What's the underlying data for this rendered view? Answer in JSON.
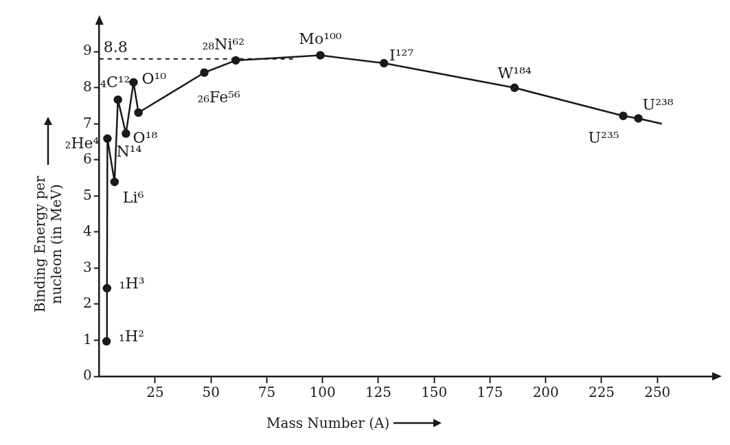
{
  "chart_data": {
    "type": "line",
    "xlabel": "Mass Number (A)",
    "ylabel": "Binding Energy per nucleon (in MeV)",
    "x": [
      3.2,
      3.4,
      3.6,
      6.8,
      8.3,
      11.9,
      15.3,
      17.5,
      47,
      61.1,
      99,
      127.5,
      186,
      234.7,
      241.5,
      252
    ],
    "series": [
      {
        "color": "#1a1a1a",
        "values": [
          0.97,
          2.44,
          6.59,
          5.39,
          7.67,
          6.73,
          8.15,
          7.31,
          8.42,
          8.76,
          8.9,
          8.68,
          8.0,
          7.22,
          7.15,
          7.0
        ]
      }
    ],
    "xlim": [
      0,
      277
    ],
    "xticks": [
      25,
      50,
      75,
      100,
      125,
      150,
      175,
      200,
      225,
      250
    ],
    "ylim": [
      0,
      9.9
    ],
    "yticks": [
      0,
      1,
      2,
      3,
      4,
      5,
      6,
      7,
      8,
      9
    ],
    "ref_lines": [
      {
        "axis": "y",
        "value": 8.8,
        "label": "8.8",
        "line_style": "dashed"
      }
    ],
    "annotations": [
      {
        "text": "₁H²",
        "x": 3.2,
        "y": 0.97
      },
      {
        "text": "₁H³",
        "x": 3.4,
        "y": 2.44
      },
      {
        "text": "₂He⁴",
        "x": 3.6,
        "y": 6.59
      },
      {
        "text": "Li⁶",
        "x": 6.8,
        "y": 5.39
      },
      {
        "text": "₄C¹²",
        "x": 8.3,
        "y": 7.67
      },
      {
        "text": "N¹⁴",
        "x": 11.9,
        "y": 6.73
      },
      {
        "text": "O¹⁰",
        "x": 15.3,
        "y": 8.15
      },
      {
        "text": "O¹⁸",
        "x": 17.5,
        "y": 7.31
      },
      {
        "text": "₂₆Fe⁵⁶",
        "x": 47,
        "y": 8.42
      },
      {
        "text": "₂₈Ni⁶²",
        "x": 61.1,
        "y": 8.76
      },
      {
        "text": "Mo¹⁰⁰",
        "x": 99,
        "y": 8.9
      },
      {
        "text": "I¹²⁷",
        "x": 127.5,
        "y": 8.68
      },
      {
        "text": "W¹⁸⁴",
        "x": 186,
        "y": 8.0
      },
      {
        "text": "U²³⁵",
        "x": 234.7,
        "y": 7.22
      },
      {
        "text": "U²³⁸",
        "x": 241.5,
        "y": 7.15
      }
    ],
    "marker": "circle",
    "line_style": "solid",
    "grid": false,
    "legend": false
  }
}
